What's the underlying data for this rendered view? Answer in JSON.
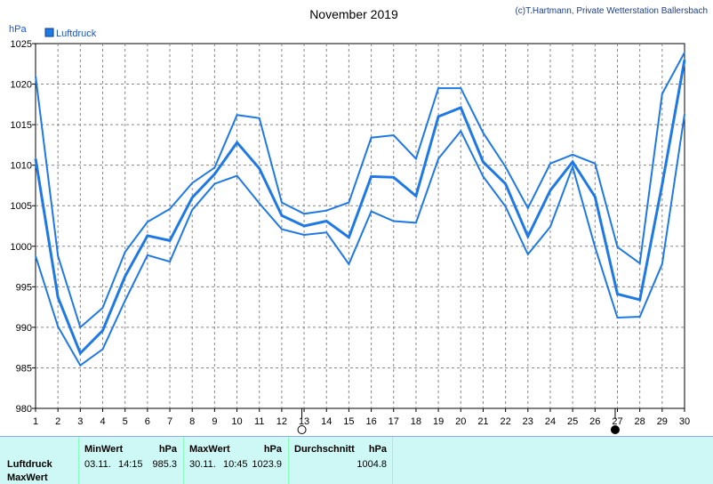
{
  "title": "November 2019",
  "credit": "(c)T.Hartmann, Private Wetterstation Ballersbach",
  "legend": {
    "label": "Luftdruck",
    "color": "#1e78e6"
  },
  "y_unit": "hPa",
  "chart_data": {
    "type": "line",
    "x": [
      1,
      2,
      3,
      4,
      5,
      6,
      7,
      8,
      9,
      10,
      11,
      12,
      13,
      14,
      15,
      16,
      17,
      18,
      19,
      20,
      21,
      22,
      23,
      24,
      25,
      26,
      27,
      28,
      29,
      30
    ],
    "xticks": [
      "1",
      "2",
      "3",
      "4",
      "5",
      "6",
      "7",
      "8",
      "9",
      "10",
      "11",
      "12",
      "13",
      "14",
      "15",
      "16",
      "17",
      "18",
      "19",
      "20",
      "21",
      "22",
      "23",
      "24",
      "25",
      "26",
      "27",
      "28",
      "29",
      "30"
    ],
    "ylim": [
      980,
      1025
    ],
    "yticks": [
      "980",
      "985",
      "990",
      "995",
      "1000",
      "1005",
      "1010",
      "1015",
      "1020",
      "1025"
    ],
    "series": [
      {
        "name": "Luftdruck",
        "width": 3,
        "values": [
          1010.8,
          993.7,
          986.8,
          989.6,
          996.3,
          1001.3,
          1000.7,
          1006.0,
          1008.9,
          1012.8,
          1009.6,
          1003.8,
          1002.5,
          1003.1,
          1001.1,
          1008.6,
          1008.5,
          1006.2,
          1016.0,
          1017.1,
          1010.4,
          1007.7,
          1001.2,
          1006.9,
          1010.4,
          1006.1,
          994.1,
          993.4,
          1007.6,
          1023.0
        ]
      },
      {
        "name": "",
        "width": 2,
        "values": [
          1021.0,
          998.8,
          990.0,
          992.4,
          999.3,
          1003.0,
          1004.6,
          1007.8,
          1009.7,
          1016.2,
          1015.8,
          1005.4,
          1004.0,
          1004.4,
          1005.4,
          1013.4,
          1013.7,
          1010.8,
          1019.5,
          1019.5,
          1014.0,
          1009.8,
          1004.7,
          1010.2,
          1011.3,
          1010.2,
          999.9,
          997.9,
          1018.8,
          1023.9
        ]
      },
      {
        "name": "",
        "width": 2,
        "values": [
          998.8,
          990.1,
          985.3,
          987.3,
          993.3,
          998.9,
          998.1,
          1004.5,
          1007.7,
          1008.7,
          1005.3,
          1002.1,
          1001.4,
          1001.7,
          997.8,
          1004.3,
          1003.1,
          1002.9,
          1010.8,
          1014.2,
          1008.6,
          1004.9,
          999.0,
          1002.4,
          1009.8,
          999.9,
          991.2,
          991.3,
          997.8,
          1016.3
        ]
      }
    ],
    "moon_phases": [
      {
        "day": 12.9,
        "phase": "first-quarter"
      },
      {
        "day": 26.9,
        "phase": "new-moon"
      }
    ],
    "grid": true,
    "legend_position": "top-left"
  },
  "stats": {
    "min_header": "MinWert",
    "max_header": "MaxWert",
    "avg_header": "Durchschnitt",
    "unit": "hPa",
    "row_label": "Luftdruck",
    "row_label2": "MaxWert",
    "min_date": "03.11.",
    "min_time": "14:15",
    "min_value": "985.3",
    "max_date": "30.11.",
    "max_time": "10:45",
    "max_value": "1023.9",
    "avg_value": "1004.8"
  }
}
